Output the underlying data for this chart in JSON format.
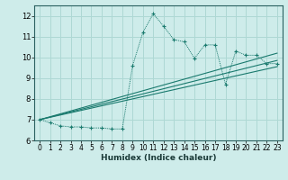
{
  "title": "",
  "xlabel": "Humidex (Indice chaleur)",
  "bg_color": "#ceecea",
  "grid_color": "#aed8d4",
  "line_color": "#1a7a6e",
  "xlim": [
    -0.5,
    23.5
  ],
  "ylim": [
    6,
    12.5
  ],
  "xticks": [
    0,
    1,
    2,
    3,
    4,
    5,
    6,
    7,
    8,
    9,
    10,
    11,
    12,
    13,
    14,
    15,
    16,
    17,
    18,
    19,
    20,
    21,
    22,
    23
  ],
  "yticks": [
    6,
    7,
    8,
    9,
    10,
    11,
    12
  ],
  "series1_x": [
    0,
    1,
    2,
    3,
    4,
    5,
    6,
    7,
    8,
    9,
    10,
    11,
    12,
    13,
    14,
    15,
    16,
    17,
    18,
    19,
    20,
    21,
    22,
    23
  ],
  "series1_y": [
    7.0,
    6.85,
    6.7,
    6.65,
    6.65,
    6.6,
    6.6,
    6.55,
    6.55,
    9.6,
    11.2,
    12.1,
    11.5,
    10.85,
    10.75,
    9.95,
    10.6,
    10.6,
    8.7,
    10.3,
    10.1,
    10.1,
    9.7,
    9.7
  ],
  "series2_x": [
    0,
    23
  ],
  "series2_y": [
    7.0,
    9.85
  ],
  "series3_x": [
    0,
    23
  ],
  "series3_y": [
    7.0,
    10.2
  ],
  "series4_x": [
    0,
    23
  ],
  "series4_y": [
    7.0,
    9.55
  ]
}
